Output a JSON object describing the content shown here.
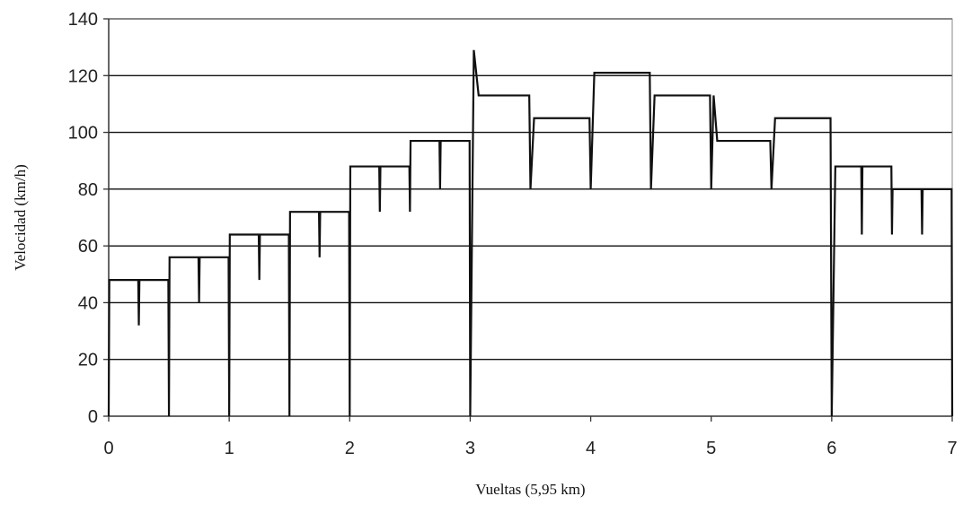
{
  "chart_data": {
    "type": "line",
    "title": "",
    "xlabel": "Vueltas (5,95 km)",
    "ylabel": "Velocidad (km/h)",
    "xlim": [
      0,
      7
    ],
    "ylim": [
      0,
      140
    ],
    "xticks": [
      "0",
      "1",
      "2",
      "3",
      "4",
      "5",
      "6",
      "7"
    ],
    "yticks": [
      "0",
      "20",
      "40",
      "60",
      "80",
      "100",
      "120",
      "140"
    ],
    "grid": "horizontal",
    "legend": "none",
    "line_color": "#111111",
    "grid_color": "#111111",
    "series": [
      {
        "points": [
          [
            0,
            0
          ],
          [
            0.005,
            48
          ],
          [
            0.245,
            48
          ],
          [
            0.25,
            32
          ],
          [
            0.255,
            48
          ],
          [
            0.495,
            48
          ],
          [
            0.5,
            0
          ],
          [
            0.505,
            56
          ],
          [
            0.745,
            56
          ],
          [
            0.75,
            40
          ],
          [
            0.755,
            56
          ],
          [
            0.995,
            56
          ],
          [
            1.0,
            0
          ],
          [
            1.005,
            64
          ],
          [
            1.245,
            64
          ],
          [
            1.25,
            48
          ],
          [
            1.255,
            64
          ],
          [
            1.495,
            64
          ],
          [
            1.5,
            0
          ],
          [
            1.505,
            72
          ],
          [
            1.745,
            72
          ],
          [
            1.75,
            56
          ],
          [
            1.755,
            72
          ],
          [
            1.995,
            72
          ],
          [
            2.0,
            0
          ],
          [
            2.005,
            88
          ],
          [
            2.245,
            88
          ],
          [
            2.25,
            72
          ],
          [
            2.255,
            88
          ],
          [
            2.495,
            88
          ],
          [
            2.5,
            72
          ],
          [
            2.505,
            97
          ],
          [
            2.745,
            97
          ],
          [
            2.75,
            80
          ],
          [
            2.755,
            97
          ],
          [
            2.995,
            97
          ],
          [
            3.0,
            0
          ],
          [
            3.03,
            129
          ],
          [
            3.07,
            113
          ],
          [
            3.49,
            113
          ],
          [
            3.5,
            80
          ],
          [
            3.53,
            105
          ],
          [
            3.99,
            105
          ],
          [
            4.0,
            80
          ],
          [
            4.03,
            121
          ],
          [
            4.49,
            121
          ],
          [
            4.5,
            80
          ],
          [
            4.53,
            113
          ],
          [
            4.99,
            113
          ],
          [
            5.0,
            80
          ],
          [
            5.02,
            113
          ],
          [
            5.05,
            97
          ],
          [
            5.49,
            97
          ],
          [
            5.5,
            80
          ],
          [
            5.53,
            105
          ],
          [
            5.99,
            105
          ],
          [
            6.0,
            0
          ],
          [
            6.03,
            88
          ],
          [
            6.245,
            88
          ],
          [
            6.25,
            64
          ],
          [
            6.255,
            88
          ],
          [
            6.495,
            88
          ],
          [
            6.5,
            64
          ],
          [
            6.505,
            80
          ],
          [
            6.745,
            80
          ],
          [
            6.75,
            64
          ],
          [
            6.755,
            80
          ],
          [
            6.995,
            80
          ],
          [
            7.0,
            0
          ]
        ]
      }
    ]
  }
}
